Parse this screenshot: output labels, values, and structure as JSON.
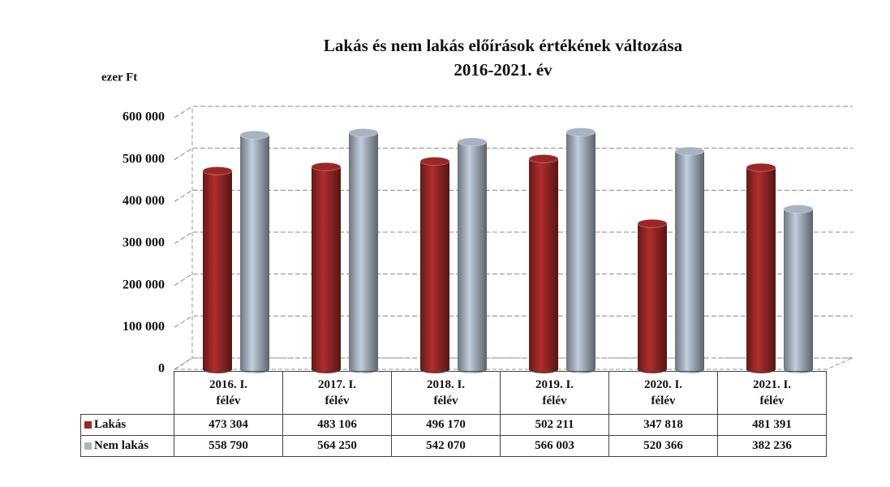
{
  "chart_data": {
    "type": "bar",
    "title": "Lakás és nem lakás előírások értékének változása",
    "subtitle": "2016-2021. év",
    "y_label": "ezer Ft",
    "categories": [
      "2016. I. félév",
      "2017. I. félév",
      "2018. I. félév",
      "2019. I. félév",
      "2020. I. félév",
      "2021. I. félév"
    ],
    "series": [
      {
        "name": "Lakás",
        "color": "#9a2727",
        "values": [
          473304,
          483106,
          496170,
          502211,
          347818,
          481391
        ],
        "value_labels": [
          "473 304",
          "483 106",
          "496 170",
          "502 211",
          "347 818",
          "481 391"
        ]
      },
      {
        "name": "Nem lakás",
        "color": "#a7b3c0",
        "values": [
          558790,
          564250,
          542070,
          566003,
          520366,
          382236
        ],
        "value_labels": [
          "558 790",
          "564 250",
          "542 070",
          "566 003",
          "520 366",
          "382 236"
        ]
      }
    ],
    "ylim": [
      0,
      600000
    ],
    "yticks": [
      0,
      {
        "value": 100000,
        "label": "100 000"
      },
      {
        "value": 200000,
        "label": "200 000"
      },
      {
        "value": 300000,
        "label": "300 000"
      },
      {
        "value": 400000,
        "label": "400 000"
      },
      {
        "value": 500000,
        "label": "500 000"
      },
      {
        "value": 600000,
        "label": "600 000"
      }
    ],
    "grid": true
  }
}
